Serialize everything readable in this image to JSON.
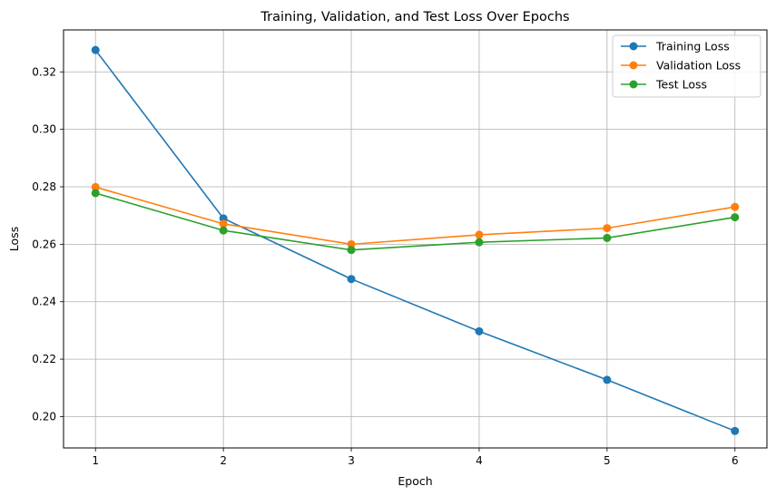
{
  "chart_data": {
    "type": "line",
    "title": "Training, Validation, and Test Loss Over Epochs",
    "xlabel": "Epoch",
    "ylabel": "Loss",
    "x": [
      1,
      2,
      3,
      4,
      5,
      6
    ],
    "xticks": [
      "1",
      "2",
      "3",
      "4",
      "5",
      "6"
    ],
    "yticks": [
      "0.20",
      "0.22",
      "0.24",
      "0.26",
      "0.28",
      "0.30",
      "0.32"
    ],
    "xlim": [
      0.75,
      6.25
    ],
    "ylim": [
      0.1891,
      0.3346
    ],
    "grid": true,
    "legend_position": "top-right",
    "series": [
      {
        "name": "Training Loss",
        "color": "#1f77b4",
        "marker": "circle",
        "values": [
          0.3276,
          0.269,
          0.2479,
          0.2297,
          0.2128,
          0.195
        ]
      },
      {
        "name": "Validation Loss",
        "color": "#ff7f0e",
        "marker": "circle",
        "values": [
          0.2799,
          0.2671,
          0.26,
          0.2633,
          0.2656,
          0.273
        ]
      },
      {
        "name": "Test Loss",
        "color": "#2ca02c",
        "marker": "circle",
        "values": [
          0.2778,
          0.2648,
          0.258,
          0.2607,
          0.2622,
          0.2694
        ]
      }
    ]
  }
}
